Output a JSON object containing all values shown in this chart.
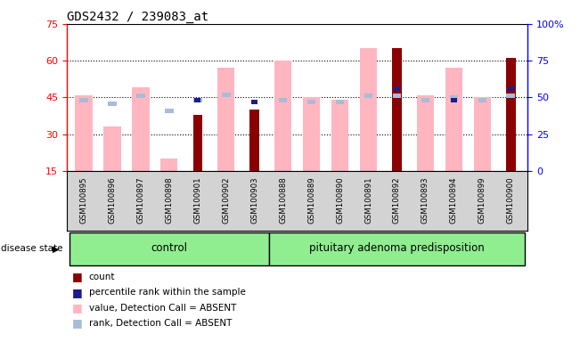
{
  "title": "GDS2432 / 239083_at",
  "samples": [
    "GSM100895",
    "GSM100896",
    "GSM100897",
    "GSM100898",
    "GSM100901",
    "GSM100902",
    "GSM100903",
    "GSM100888",
    "GSM100889",
    "GSM100890",
    "GSM100891",
    "GSM100892",
    "GSM100893",
    "GSM100894",
    "GSM100899",
    "GSM100900"
  ],
  "value_absent": [
    46,
    33,
    49,
    20,
    null,
    57,
    null,
    60,
    45,
    44,
    65,
    null,
    46,
    57,
    45,
    null
  ],
  "rank_absent": [
    48,
    46,
    51,
    41,
    48,
    52,
    null,
    48,
    47,
    47,
    51,
    51,
    48,
    50,
    48,
    51
  ],
  "count": [
    null,
    null,
    null,
    null,
    38,
    null,
    40,
    null,
    null,
    null,
    null,
    65,
    null,
    null,
    null,
    61
  ],
  "percentile": [
    null,
    null,
    null,
    null,
    48,
    null,
    47,
    null,
    null,
    null,
    null,
    56,
    null,
    48,
    null,
    56
  ],
  "left_ylim": [
    15,
    75
  ],
  "right_ylim": [
    0,
    100
  ],
  "left_yticks": [
    15,
    30,
    45,
    60,
    75
  ],
  "right_yticks": [
    0,
    25,
    50,
    75,
    100
  ],
  "right_yticklabels": [
    "0",
    "25",
    "50",
    "75",
    "100%"
  ],
  "color_count": "#8B0000",
  "color_percentile": "#1C1C8B",
  "color_value_absent": "#FFB6C1",
  "color_rank_absent": "#A8BCD8",
  "bar_width": 0.6,
  "n_control": 7,
  "n_total": 16
}
